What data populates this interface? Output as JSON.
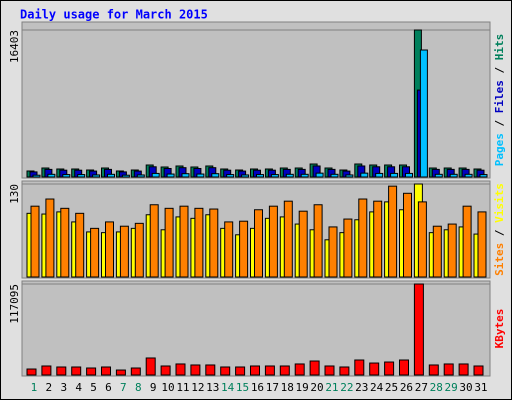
{
  "chart_data": {
    "type": "bar",
    "title": "Daily usage for March 2015",
    "categories": [
      "1",
      "2",
      "3",
      "4",
      "5",
      "6",
      "7",
      "8",
      "9",
      "10",
      "11",
      "12",
      "13",
      "14",
      "15",
      "16",
      "17",
      "18",
      "19",
      "20",
      "21",
      "22",
      "23",
      "24",
      "25",
      "26",
      "27",
      "28",
      "29",
      "30",
      "31"
    ],
    "category_colors": [
      "#00805c",
      "#000000",
      "#000000",
      "#000000",
      "#000000",
      "#000000",
      "#00805c",
      "#00805c",
      "#000000",
      "#000000",
      "#000000",
      "#000000",
      "#000000",
      "#00805c",
      "#00805c",
      "#000000",
      "#000000",
      "#000000",
      "#000000",
      "#000000",
      "#00805c",
      "#00805c",
      "#000000",
      "#000000",
      "#000000",
      "#000000",
      "#000000",
      "#00805c",
      "#00805c",
      "#000000",
      "#000000"
    ],
    "legend_separator": " / ",
    "panels": [
      {
        "ylim": [
          0,
          16403
        ],
        "yticks": [
          16403
        ],
        "series": [
          {
            "name": "Hits",
            "color": "#00805c",
            "values": [
              670,
              1004,
              893,
              893,
              781,
              1004,
              670,
              781,
              1339,
              1116,
              1228,
              1116,
              1228,
              893,
              781,
              893,
              893,
              1004,
              1004,
              1451,
              1004,
              781,
              1451,
              1339,
              1339,
              1339,
              16403,
              1004,
              1004,
              1004,
              893
            ]
          },
          {
            "name": "Files",
            "color": "#0000c0",
            "values": [
              570,
              850,
              760,
              760,
              660,
              850,
              570,
              660,
              1140,
              950,
              1040,
              950,
              1040,
              760,
              660,
              760,
              760,
              850,
              850,
              1230,
              850,
              660,
              1230,
              1140,
              1140,
              1140,
              9700,
              850,
              850,
              850,
              760
            ]
          },
          {
            "name": "Pages",
            "color": "#00c0ff",
            "values": [
              200,
              300,
              270,
              270,
              230,
              300,
              200,
              230,
              400,
              330,
              370,
              330,
              370,
              270,
              230,
              270,
              270,
              300,
              300,
              430,
              300,
              230,
              430,
              400,
              400,
              400,
              14170,
              300,
              300,
              300,
              270
            ]
          }
        ]
      },
      {
        "ylim": [
          0,
          130
        ],
        "yticks": [
          130
        ],
        "series": [
          {
            "name": "Visits",
            "color": "#ffff00",
            "values": [
              89,
              88,
              91,
              77,
              63,
              62,
              63,
              68,
              87,
              66,
              84,
              82,
              87,
              68,
              59,
              68,
              82,
              84,
              74,
              66,
              52,
              62,
              80,
              91,
              105,
              94,
              130,
              62,
              66,
              70,
              60
            ]
          },
          {
            "name": "Sites",
            "color": "#ff8000",
            "values": [
              99,
              109,
              96,
              89,
              68,
              77,
              71,
              75,
              101,
              96,
              99,
              96,
              95,
              77,
              78,
              94,
              99,
              106,
              92,
              101,
              70,
              81,
              109,
              106,
              127,
              117,
              105,
              71,
              74,
              99,
              91
            ]
          }
        ]
      },
      {
        "ylim": [
          0,
          117095
        ],
        "yticks": [
          117095
        ],
        "series": [
          {
            "name": "KBytes",
            "color": "#ff0000",
            "values": [
              7700,
              11600,
              10300,
              10300,
              9000,
              10300,
              6400,
              9000,
              21900,
              11600,
              14200,
              12900,
              12900,
              10300,
              10300,
              11600,
              11600,
              11600,
              14200,
              18000,
              11600,
              10300,
              19300,
              15400,
              16700,
              19300,
              117095,
              12900,
              14200,
              14200,
              11600
            ]
          }
        ]
      }
    ]
  }
}
